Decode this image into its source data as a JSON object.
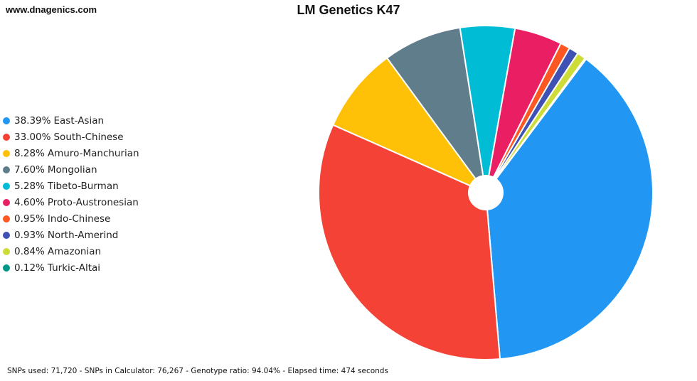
{
  "site": "www.dnagenics.com",
  "footer": "SNPs used: 71,720 - SNPs in Calculator: 76,267 - Genotype ratio: 94.04% - Elapsed time: 474 seconds",
  "chart_data": {
    "type": "pie",
    "title": "LM Genetics K47",
    "legend_position": "left",
    "donut_hole": true,
    "slices": [
      {
        "label": "East-Asian",
        "pct_text": "38.39%",
        "value": 38.39,
        "color": "#2196F3"
      },
      {
        "label": "South-Chinese",
        "pct_text": "33.00%",
        "value": 33.0,
        "color": "#F44336"
      },
      {
        "label": "Amuro-Manchurian",
        "pct_text": "8.28%",
        "value": 8.28,
        "color": "#FFC107"
      },
      {
        "label": "Mongolian",
        "pct_text": "7.60%",
        "value": 7.6,
        "color": "#607D8B"
      },
      {
        "label": "Tibeto-Burman",
        "pct_text": "5.28%",
        "value": 5.28,
        "color": "#00BCD4"
      },
      {
        "label": "Proto-Austronesian",
        "pct_text": "4.60%",
        "value": 4.6,
        "color": "#E91E63"
      },
      {
        "label": "Indo-Chinese",
        "pct_text": "0.95%",
        "value": 0.95,
        "color": "#FF5722"
      },
      {
        "label": "North-Amerind",
        "pct_text": "0.93%",
        "value": 0.93,
        "color": "#3F51B5"
      },
      {
        "label": "Amazonian",
        "pct_text": "0.84%",
        "value": 0.84,
        "color": "#CDDC39"
      },
      {
        "label": "Turkic-Altai",
        "pct_text": "0.12%",
        "value": 0.12,
        "color": "#009688"
      }
    ]
  }
}
